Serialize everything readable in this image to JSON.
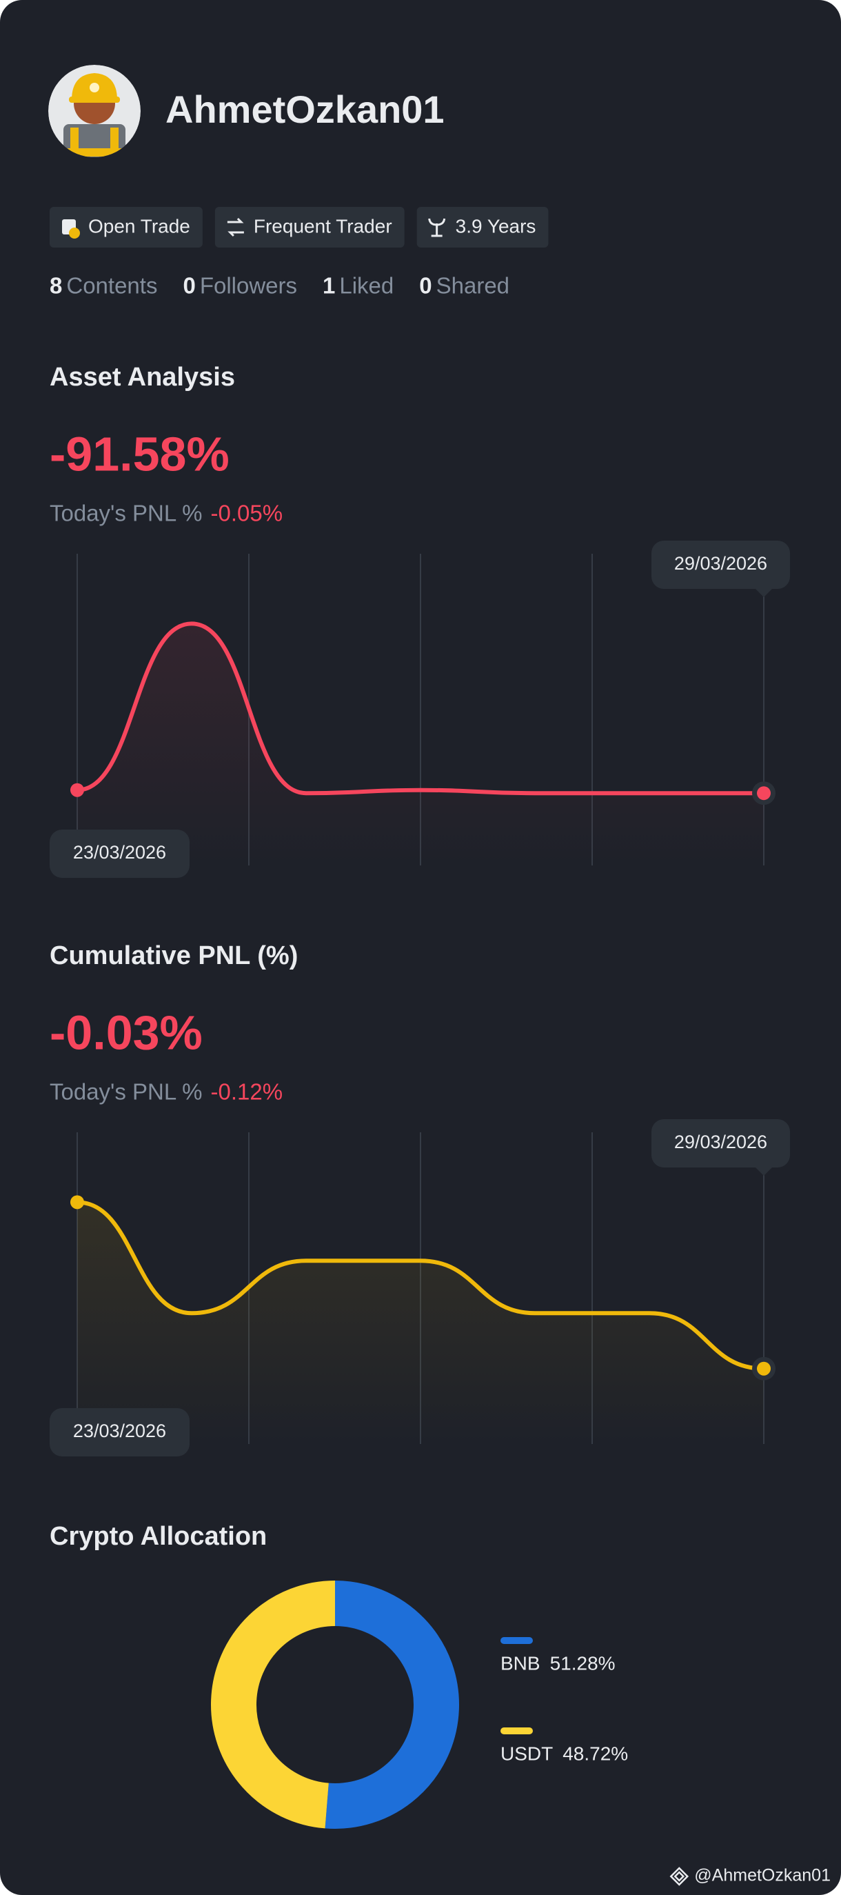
{
  "profile": {
    "name": "AhmetOzkan01",
    "badges": [
      "Open Trade",
      "Frequent Trader",
      "3.9 Years"
    ],
    "stats": [
      {
        "count": 8,
        "label": "Contents"
      },
      {
        "count": 0,
        "label": "Followers"
      },
      {
        "count": 1,
        "label": "Liked"
      },
      {
        "count": 0,
        "label": "Shared"
      }
    ]
  },
  "asset_analysis": {
    "title": "Asset Analysis",
    "value": "-91.58%",
    "today_label": "Today's PNL %",
    "today_value": "-0.05%",
    "chart_data": {
      "type": "line",
      "categories": [
        "23/03/2026",
        null,
        null,
        null,
        null,
        null,
        "29/03/2026"
      ],
      "values": [
        24,
        78,
        23,
        24,
        23,
        23,
        23
      ],
      "color": "#f6465d",
      "ylim": [
        0,
        100
      ]
    }
  },
  "cumulative_pnl": {
    "title": "Cumulative PNL (%)",
    "value": "-0.03%",
    "today_label": "Today's PNL %",
    "today_value": "-0.12%",
    "chart_data": {
      "type": "line",
      "categories": [
        "23/03/2026",
        null,
        null,
        null,
        null,
        null,
        "29/03/2026"
      ],
      "values": [
        78,
        42,
        59,
        59,
        42,
        42,
        24
      ],
      "color": "#f0b90b",
      "ylim": [
        0,
        100
      ]
    }
  },
  "crypto_allocation": {
    "title": "Crypto Allocation",
    "chart_data": {
      "type": "donut",
      "categories": [
        "BNB",
        "USDT"
      ],
      "values": [
        51.28,
        48.72
      ],
      "value_labels": [
        "51.28%",
        "48.72%"
      ],
      "colors": [
        "#1e6fd9",
        "#fcd535"
      ]
    }
  },
  "footer": {
    "handle": "@AhmetOzkan01"
  }
}
